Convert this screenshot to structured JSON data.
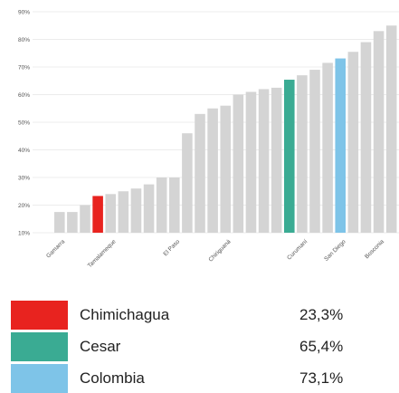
{
  "chart_data": {
    "type": "bar",
    "ylim": [
      10,
      90
    ],
    "y_ticks": [
      "10%",
      "20%",
      "30%",
      "40%",
      "50%",
      "60%",
      "70%",
      "80%",
      "90%"
    ],
    "grid": true,
    "x_labels": [
      "Gamarra",
      "Tamalameque",
      "El Paso",
      "Chiriguaná",
      "Curumaní",
      "San Diego",
      "Bosconia"
    ],
    "values": [
      17.5,
      17.5,
      20,
      23.3,
      24,
      25,
      26,
      27.5,
      30,
      30,
      46,
      53,
      55,
      56,
      60,
      61,
      62,
      62.5,
      65.4,
      67,
      69,
      71.5,
      73.1,
      75.5,
      79,
      83,
      85
    ],
    "highlight": [
      {
        "index": 3,
        "color": "#e8231f"
      },
      {
        "index": 18,
        "color": "#3aab93"
      },
      {
        "index": 22,
        "color": "#7ec4e8"
      }
    ],
    "default_color": "#d4d4d4"
  },
  "legend": [
    {
      "name": "Chimichagua",
      "value": "23,3%",
      "color": "#e8231f"
    },
    {
      "name": "Cesar",
      "value": "65,4%",
      "color": "#3aab93"
    },
    {
      "name": "Colombia",
      "value": "73,1%",
      "color": "#7ec4e8"
    }
  ]
}
